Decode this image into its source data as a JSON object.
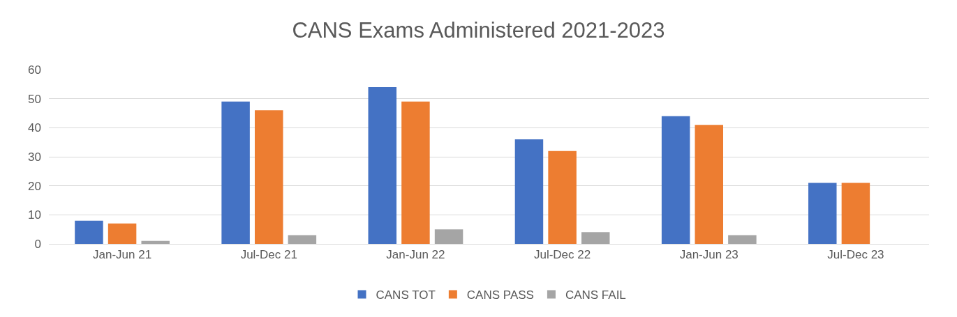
{
  "chart_data": {
    "type": "bar",
    "title": "CANS Exams Administered 2021-2023",
    "categories": [
      "Jan-Jun 21",
      "Jul-Dec 21",
      "Jan-Jun 22",
      "Jul-Dec 22",
      "Jan-Jun 23",
      "Jul-Dec 23"
    ],
    "series": [
      {
        "name": "CANS TOT",
        "color": "#4472c4",
        "values": [
          8,
          49,
          54,
          36,
          44,
          21
        ]
      },
      {
        "name": "CANS PASS",
        "color": "#ed7d31",
        "values": [
          7,
          46,
          49,
          32,
          41,
          21
        ]
      },
      {
        "name": "CANS FAIL",
        "color": "#a5a5a5",
        "values": [
          1,
          3,
          5,
          4,
          3,
          0
        ]
      }
    ],
    "ylim": [
      0,
      60
    ],
    "yticks": [
      0,
      10,
      20,
      30,
      40,
      50,
      60
    ],
    "grid": "y",
    "legend": "bottom"
  }
}
